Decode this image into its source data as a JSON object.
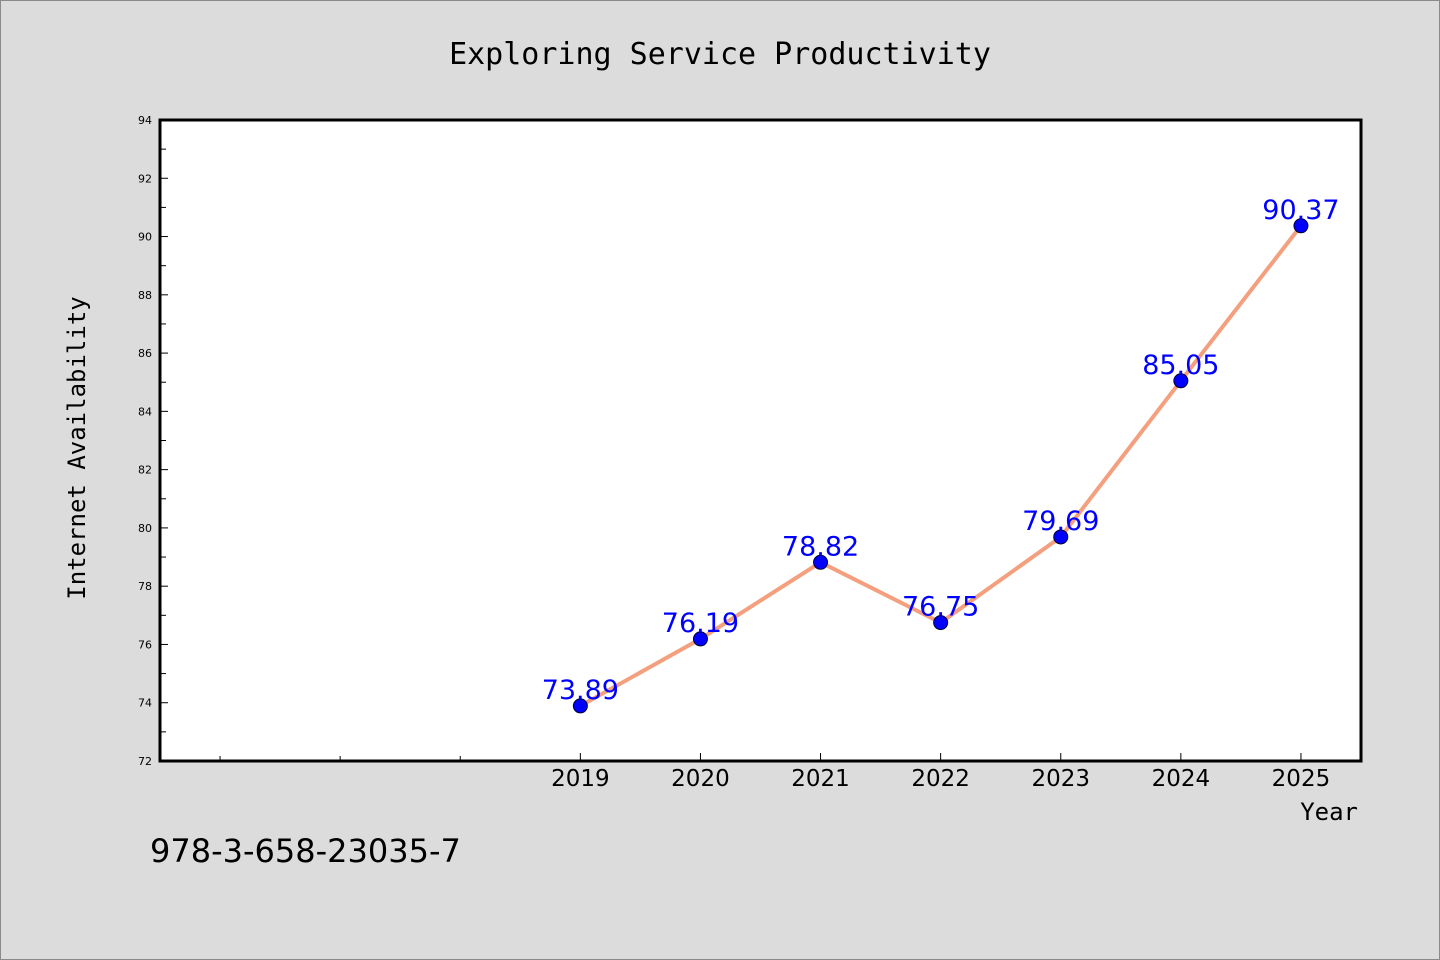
{
  "chart_data": {
    "type": "line",
    "title": "Exploring Service Productivity",
    "xlabel": "Year",
    "ylabel": "Internet Availability",
    "categories": [
      "2019",
      "2020",
      "2021",
      "2022",
      "2023",
      "2024",
      "2025"
    ],
    "series": [
      {
        "values": [
          73.89,
          76.19,
          78.82,
          76.75,
          79.69,
          85.05,
          90.37
        ],
        "labels": [
          "73.89",
          "76.19",
          "78.82",
          "76.75",
          "79.69",
          "85.05",
          "90.37"
        ]
      }
    ],
    "ylim": [
      72,
      94
    ],
    "yticks": [
      "72",
      "74",
      "76",
      "78",
      "80",
      "82",
      "84",
      "86",
      "88",
      "90",
      "92",
      "94"
    ],
    "xlim": [
      2015.5,
      2025.5
    ],
    "grid": false,
    "colors": {
      "line": "#f4a07e",
      "marker": "#0000ff",
      "data_label": "#0000ff",
      "plot_background": "#ffffff",
      "figure_background": "#dcdcdc"
    }
  },
  "annotation": {
    "isbn": "978-3-658-23035-7"
  }
}
